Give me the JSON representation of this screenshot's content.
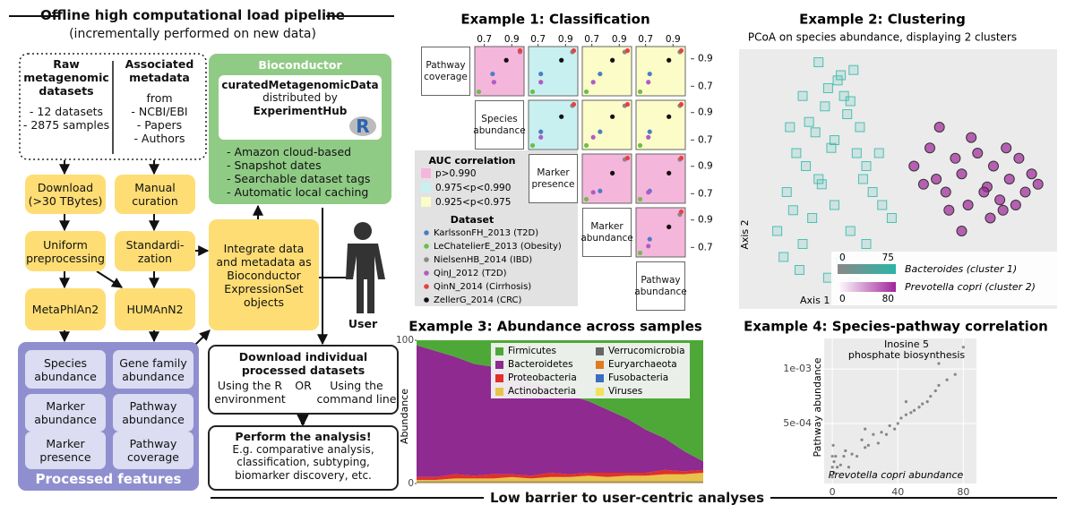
{
  "pipeline": {
    "title": "Offline high computational load pipeline",
    "subtitle": "(incrementally performed on new data)",
    "raw": {
      "title": "Raw metagenomic datasets",
      "items": [
        "- 12 datasets",
        "- 2875 samples"
      ]
    },
    "metadata": {
      "title": "Associated metadata",
      "items": [
        "from",
        "- NCBI/EBI",
        "- Papers",
        "- Authors"
      ]
    },
    "steps_left": [
      "Download (>30 TBytes)",
      "Uniform preprocessing",
      "MetaPhlAn2"
    ],
    "steps_right": [
      "Manual curation",
      "Standardi-zation",
      "HUMAnN2"
    ],
    "integrate": "Integrate data and metadata as Bioconductor ExpressionSet objects",
    "bioconductor": {
      "title": "Bioconductor",
      "package": "curatedMetagenomicData",
      "distributed": "distributed by",
      "hub": "ExperimentHub",
      "logo": "R",
      "features": [
        "- Amazon cloud-based",
        "- Snapshot dates",
        "- Searchable dataset tags",
        "- Automatic local caching"
      ]
    },
    "user": "User",
    "processed": {
      "title": "Processed features",
      "items": [
        "Species abundance",
        "Gene family abundance",
        "Marker abundance",
        "Pathway abundance",
        "Marker presence",
        "Pathway coverage"
      ]
    },
    "download": {
      "title": "Download individual processed datasets",
      "left": "Using the R environment",
      "or": "OR",
      "right": "Using the command line"
    },
    "analysis": {
      "title": "Perform the analysis!",
      "text": "E.g. comparative analysis, classification, subtyping, biomarker discovery, etc."
    },
    "footer": "Low barrier to user-centric analyses"
  },
  "chart_data": [
    {
      "type": "matrix",
      "title": "Example 1: Classification",
      "variables": [
        "Pathway coverage",
        "Species abundance",
        "Marker presence",
        "Marker abundance",
        "Pathway abundance"
      ],
      "xlim": [
        0.65,
        0.97
      ],
      "xticks": [
        0.7,
        0.9
      ],
      "ylim": [
        0.65,
        0.97
      ],
      "yticks": [
        0.7,
        0.9
      ],
      "fill_title": "AUC correlation",
      "levels": [
        {
          "label": "p>0.990",
          "color": "#f5b6dc"
        },
        {
          "label": "0.975<p<0.990",
          "color": "#c9f0f0"
        },
        {
          "label": "0.925<p<0.975",
          "color": "#fcfcc8"
        }
      ],
      "legend_title": "Dataset",
      "series": [
        {
          "name": "KarlssonFH_2013 (T2D)",
          "color": "#4a7fc1"
        },
        {
          "name": "LeChatelierE_2013 (Obesity)",
          "color": "#6abf4b"
        },
        {
          "name": "NielsenHB_2014 (IBD)",
          "color": "#888888"
        },
        {
          "name": "QinJ_2012 (T2D)",
          "color": "#b05cc6"
        },
        {
          "name": "QinN_2014 (Cirrhosis)",
          "color": "#e84040"
        },
        {
          "name": "ZellerG_2014 (CRC)",
          "color": "#111111"
        }
      ],
      "cells": [
        {
          "row": 0,
          "col": 1,
          "level": 0,
          "points": [
            [
              0.76,
              0.79
            ],
            [
              0.66,
              0.66
            ],
            [
              0.96,
              0.95
            ],
            [
              0.77,
              0.73
            ],
            [
              0.96,
              0.96
            ],
            [
              0.86,
              0.89
            ]
          ]
        },
        {
          "row": 0,
          "col": 2,
          "level": 1,
          "points": [
            [
              0.72,
              0.79
            ],
            [
              0.66,
              0.66
            ],
            [
              0.95,
              0.95
            ],
            [
              0.72,
              0.73
            ],
            [
              0.96,
              0.96
            ],
            [
              0.87,
              0.89
            ]
          ]
        },
        {
          "row": 0,
          "col": 3,
          "level": 2,
          "points": [
            [
              0.76,
              0.79
            ],
            [
              0.66,
              0.66
            ],
            [
              0.94,
              0.95
            ],
            [
              0.71,
              0.73
            ],
            [
              0.96,
              0.96
            ],
            [
              0.85,
              0.89
            ]
          ]
        },
        {
          "row": 0,
          "col": 4,
          "level": 2,
          "points": [
            [
              0.73,
              0.79
            ],
            [
              0.66,
              0.66
            ],
            [
              0.95,
              0.95
            ],
            [
              0.72,
              0.73
            ],
            [
              0.96,
              0.96
            ],
            [
              0.87,
              0.89
            ]
          ]
        },
        {
          "row": 1,
          "col": 2,
          "level": 1,
          "points": [
            [
              0.72,
              0.76
            ],
            [
              0.66,
              0.66
            ],
            [
              0.95,
              0.95
            ],
            [
              0.72,
              0.72
            ],
            [
              0.96,
              0.96
            ],
            [
              0.87,
              0.87
            ]
          ]
        },
        {
          "row": 1,
          "col": 3,
          "level": 2,
          "points": [
            [
              0.76,
              0.76
            ],
            [
              0.66,
              0.66
            ],
            [
              0.94,
              0.95
            ],
            [
              0.71,
              0.72
            ],
            [
              0.96,
              0.96
            ],
            [
              0.85,
              0.87
            ]
          ]
        },
        {
          "row": 1,
          "col": 4,
          "level": 2,
          "points": [
            [
              0.73,
              0.76
            ],
            [
              0.66,
              0.66
            ],
            [
              0.95,
              0.95
            ],
            [
              0.72,
              0.72
            ],
            [
              0.96,
              0.96
            ],
            [
              0.87,
              0.87
            ]
          ]
        },
        {
          "row": 2,
          "col": 3,
          "level": 0,
          "points": [
            [
              0.76,
              0.72
            ],
            [
              0.66,
              0.66
            ],
            [
              0.94,
              0.95
            ],
            [
              0.71,
              0.71
            ],
            [
              0.96,
              0.96
            ],
            [
              0.85,
              0.85
            ]
          ]
        },
        {
          "row": 2,
          "col": 4,
          "level": 0,
          "points": [
            [
              0.73,
              0.72
            ],
            [
              0.66,
              0.66
            ],
            [
              0.95,
              0.95
            ],
            [
              0.72,
              0.71
            ],
            [
              0.96,
              0.96
            ],
            [
              0.87,
              0.85
            ]
          ]
        },
        {
          "row": 3,
          "col": 4,
          "level": 0,
          "points": [
            [
              0.73,
              0.76
            ],
            [
              0.66,
              0.66
            ],
            [
              0.95,
              0.94
            ],
            [
              0.72,
              0.71
            ],
            [
              0.96,
              0.96
            ],
            [
              0.87,
              0.85
            ]
          ]
        }
      ]
    },
    {
      "type": "scatter",
      "title": "Example 2: Clustering",
      "subtitle": "PCoA on species abundance, displaying 2 clusters",
      "xlabel": "Axis 1",
      "ylabel": "Axis 2",
      "xlim": [
        0,
        100
      ],
      "ylim": [
        0,
        100
      ],
      "series": [
        {
          "name": "Bacteroides (cluster 1)",
          "color": "#2bb5a5",
          "marker": "square",
          "scale": [
            0,
            75
          ],
          "x": [
            12,
            15,
            18,
            20,
            22,
            25,
            28,
            30,
            32,
            35,
            38,
            40,
            14,
            17,
            21,
            24,
            27,
            31,
            34,
            37,
            19,
            23,
            26,
            29,
            33,
            36,
            39,
            42,
            45,
            48,
            16,
            20,
            25,
            30,
            35,
            40,
            44,
            28,
            32,
            36
          ],
          "values": [
            30,
            45,
            60,
            25,
            72,
            50,
            85,
            65,
            90,
            80,
            70,
            55,
            20,
            38,
            55,
            68,
            78,
            88,
            75,
            60,
            15,
            35,
            48,
            62,
            82,
            92,
            50,
            45,
            40,
            35,
            70,
            82,
            95,
            40,
            30,
            25,
            60,
            12,
            18,
            10
          ]
        },
        {
          "name": "Prevotella copri (cluster 2)",
          "color": "#a0259a",
          "marker": "circle",
          "scale": [
            0,
            80
          ],
          "x": [
            55,
            58,
            60,
            62,
            65,
            68,
            70,
            72,
            75,
            78,
            80,
            82,
            85,
            88,
            90,
            92,
            94,
            66,
            73,
            79,
            84,
            87,
            63,
            70,
            77,
            83
          ],
          "values": [
            55,
            48,
            62,
            50,
            45,
            58,
            52,
            40,
            60,
            47,
            55,
            42,
            50,
            58,
            45,
            52,
            48,
            38,
            66,
            35,
            62,
            40,
            70,
            30,
            45,
            38
          ]
        }
      ]
    },
    {
      "type": "area",
      "title": "Example 3: Abundance across samples",
      "ylabel": "Abundance",
      "ylim": [
        0,
        100
      ],
      "yticks": [
        0,
        100
      ],
      "categories": [
        null,
        null,
        null,
        null,
        null,
        null,
        null,
        null,
        null,
        null,
        null,
        null,
        null,
        null,
        null,
        null
      ],
      "series": [
        {
          "name": "Firmicutes",
          "color": "#4ea838",
          "values": [
            3.5,
            7.5,
            11.5,
            16.5,
            18.5,
            23.5,
            28.5,
            32.5,
            38.5,
            42.5,
            48.5,
            54.5,
            62.5,
            68.5,
            77.5,
            84.5
          ]
        },
        {
          "name": "Bacteroidetes",
          "color": "#8e2a90",
          "values": [
            92,
            88,
            82,
            78,
            75,
            70,
            66,
            60,
            55,
            50,
            44,
            38,
            30,
            22,
            14,
            6
          ]
        },
        {
          "name": "Proteobacteria",
          "color": "#e0302a",
          "values": [
            2,
            2,
            3,
            2,
            3,
            2,
            2,
            3,
            2,
            2,
            3,
            2,
            2,
            3,
            2,
            2
          ]
        },
        {
          "name": "Actinobacteria",
          "color": "#e8c24a",
          "values": [
            1,
            1,
            2,
            2,
            2,
            3,
            2,
            3,
            3,
            4,
            3,
            4,
            4,
            5,
            5,
            6
          ]
        },
        {
          "name": "Verrucomicrobia",
          "color": "#666666",
          "values": [
            0.5,
            0.5,
            0.5,
            0.5,
            0.5,
            0.5,
            0.5,
            0.5,
            0.5,
            0.5,
            0.5,
            0.5,
            0.5,
            0.5,
            0.5,
            0.5
          ]
        },
        {
          "name": "Euryarchaeota",
          "color": "#e07b20",
          "values": [
            0.3,
            0.3,
            0.3,
            0.3,
            0.3,
            0.3,
            0.3,
            0.3,
            0.3,
            0.3,
            0.3,
            0.3,
            0.3,
            0.3,
            0.3,
            0.3
          ]
        },
        {
          "name": "Fusobacteria",
          "color": "#3a6ec0",
          "values": [
            0.2,
            0.2,
            0.2,
            0.2,
            0.2,
            0.2,
            0.2,
            0.2,
            0.2,
            0.2,
            0.2,
            0.2,
            0.2,
            0.2,
            0.2,
            0.2
          ]
        },
        {
          "name": "Viruses",
          "color": "#f2e060",
          "values": [
            0.5,
            0.5,
            0.5,
            0.5,
            0.5,
            0.5,
            0.5,
            0.5,
            0.5,
            0.5,
            0.5,
            0.5,
            0.5,
            0.5,
            0.5,
            0.5
          ]
        }
      ]
    },
    {
      "type": "scatter",
      "title": "Example 4: Species-pathway correlation",
      "annotation": [
        "Inosine 5",
        "phosphate biosynthesis"
      ],
      "xlabel": "Prevotella copri abundance",
      "ylabel": "Pathway abundance",
      "xlim": [
        -5,
        88
      ],
      "xticks": [
        0,
        40,
        80
      ],
      "ylim": [
        -5e-05,
        0.00128
      ],
      "yticks": [
        {
          "value": 0.0005,
          "label": "5e-04"
        },
        {
          "value": 0.001,
          "label": "1e-03"
        }
      ],
      "grid": true,
      "series": [
        {
          "color": "#222222",
          "marker": "dot",
          "x": [
            0,
            0,
            0,
            0.5,
            1,
            1,
            2,
            3,
            5,
            7,
            10,
            12,
            15,
            18,
            20,
            22,
            25,
            28,
            30,
            33,
            35,
            38,
            40,
            42,
            45,
            48,
            50,
            53,
            55,
            58,
            60,
            63,
            65,
            70,
            75,
            80,
            65,
            20,
            8,
            45
          ],
          "values": [
            1e-05,
            0.0001,
            0.0002,
            0.0003,
            0.00015,
            5e-05,
            0.0002,
            0.0001,
            0.00012,
            0.0002,
            0.0001,
            0.00022,
            0.0002,
            0.00035,
            0.00028,
            0.0003,
            0.0004,
            0.00032,
            0.00042,
            0.0004,
            0.00048,
            0.00045,
            0.0005,
            0.00055,
            0.00058,
            0.0006,
            0.00062,
            0.00065,
            0.00068,
            0.0007,
            0.00075,
            0.0008,
            0.00085,
            0.0009,
            0.00095,
            0.0012,
            0.00105,
            0.00045,
            0.00025,
            0.0007
          ]
        }
      ]
    }
  ]
}
